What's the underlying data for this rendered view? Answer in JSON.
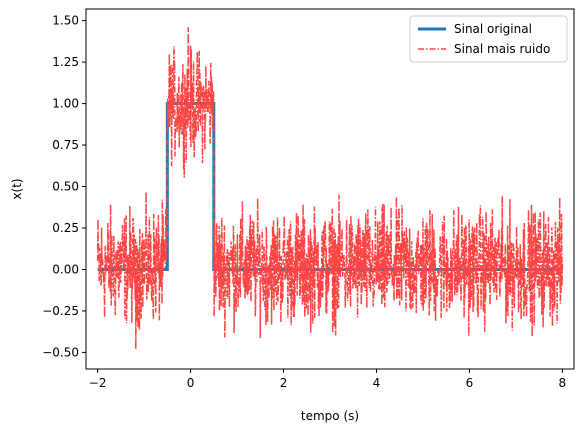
{
  "chart_data": {
    "type": "line",
    "xlabel": "tempo (s)",
    "ylabel": "x(t)",
    "xlim": [
      -2.25,
      8.25
    ],
    "ylim": [
      -0.6,
      1.57
    ],
    "x_ticks": [
      -2,
      0,
      2,
      4,
      6,
      8
    ],
    "y_ticks": [
      -0.5,
      -0.25,
      0.0,
      0.25,
      0.5,
      0.75,
      1.0,
      1.25,
      1.5
    ],
    "x_tick_labels": [
      "−2",
      "0",
      "2",
      "4",
      "6",
      "8"
    ],
    "y_tick_labels": [
      "−0.50",
      "−0.25",
      "0.00",
      "0.25",
      "0.50",
      "0.75",
      "1.00",
      "1.25",
      "1.50"
    ],
    "grid": false,
    "legend_position": "top-right",
    "series": [
      {
        "name": "Sinal original",
        "color": "#1f77b4",
        "style": "solid",
        "x": [
          -2,
          -0.5,
          -0.5,
          0.5,
          0.5,
          8
        ],
        "y": [
          0,
          0,
          1,
          1,
          0,
          0
        ]
      },
      {
        "name": "Sinal mais ruido",
        "color": "#ff4444",
        "style": "dashdot",
        "x_range": [
          -2,
          8
        ],
        "pulse_interval": [
          -0.5,
          0.5
        ],
        "noise_bounds_outside_pulse": [
          -0.48,
          0.52
        ],
        "noise_bounds_inside_pulse": [
          0.53,
          1.46
        ],
        "x_at_max": -0.05,
        "y_max": 1.46,
        "x_at_min": -1.18,
        "y_min": -0.48
      }
    ]
  }
}
